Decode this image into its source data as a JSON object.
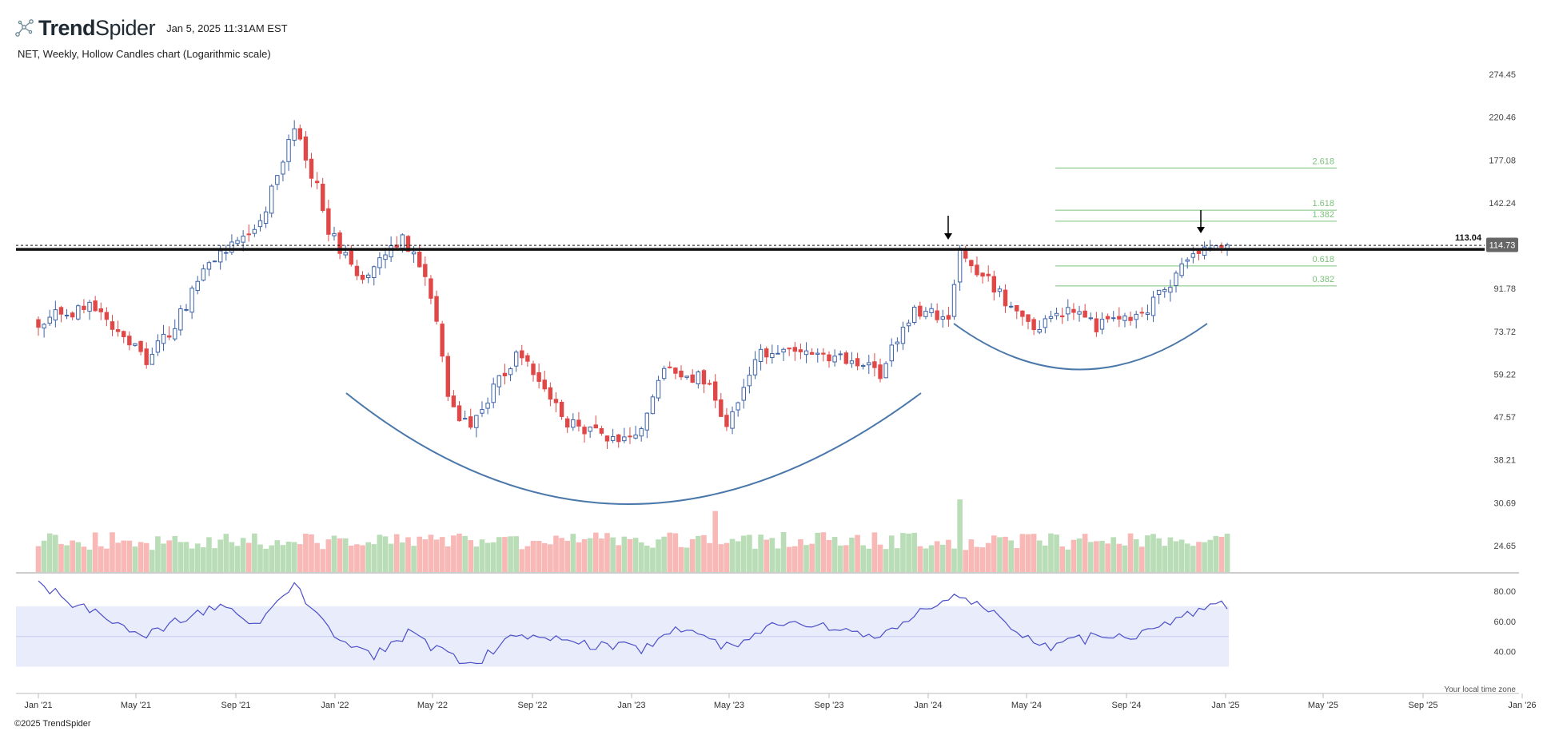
{
  "header": {
    "brand_bold": "Trend",
    "brand_rest": "Spider",
    "timestamp": "Jan 5, 2025 11:31AM EST",
    "subtitle": "NET, Weekly, Hollow Candles chart (Logarithmic scale)"
  },
  "footer": {
    "copyright": "©2025 TrendSpider"
  },
  "colors": {
    "up": "#3d63a8",
    "down": "#e04848",
    "vol_up": "#b9ddb6",
    "vol_down": "#f7b8b6",
    "fib": "#7cc27c",
    "arc": "#4a78aa",
    "rsi_line": "#4b4fc8",
    "rsi_band": "#e9ecfb",
    "resistance": "#111111",
    "price_badge": "#666666"
  },
  "chart_data": {
    "type": "candlestick",
    "symbol": "NET",
    "interval": "Weekly",
    "scale": "log",
    "xlabel": "Your local time zone",
    "x_ticks": [
      "Jan '21",
      "May '21",
      "Sep '21",
      "Jan '22",
      "May '22",
      "Sep '22",
      "Jan '23",
      "May '23",
      "Sep '23",
      "Jan '24",
      "May '24",
      "Sep '24",
      "Jan '25",
      "May '25",
      "Sep '25",
      "Jan '26"
    ],
    "price_ticks": [
      274.45,
      220.46,
      177.08,
      142.24,
      91.78,
      73.72,
      59.22,
      47.57,
      38.21,
      30.69,
      24.65
    ],
    "last_price": "114.73",
    "resistance": {
      "value": 113.04,
      "label": "113.04"
    },
    "fib_levels": [
      {
        "label": "2.618",
        "value": 170.0
      },
      {
        "label": "1.618",
        "value": 137.0
      },
      {
        "label": "1.382",
        "value": 129.5
      },
      {
        "label": "0.618",
        "value": 103.0
      },
      {
        "label": "0.382",
        "value": 93.0
      }
    ],
    "close_anchors": [
      {
        "date": "2021-01-01",
        "close": 78
      },
      {
        "date": "2021-03-05",
        "close": 84
      },
      {
        "date": "2021-05-14",
        "close": 64
      },
      {
        "date": "2021-06-18",
        "close": 76
      },
      {
        "date": "2021-08-06",
        "close": 108
      },
      {
        "date": "2021-09-24",
        "close": 122
      },
      {
        "date": "2021-10-15",
        "close": 150
      },
      {
        "date": "2021-11-12",
        "close": 205
      },
      {
        "date": "2021-11-26",
        "close": 180
      },
      {
        "date": "2021-12-24",
        "close": 125
      },
      {
        "date": "2022-01-28",
        "close": 95
      },
      {
        "date": "2022-03-25",
        "close": 120
      },
      {
        "date": "2022-04-22",
        "close": 100
      },
      {
        "date": "2022-05-20",
        "close": 52
      },
      {
        "date": "2022-06-17",
        "close": 44
      },
      {
        "date": "2022-07-29",
        "close": 60
      },
      {
        "date": "2022-08-12",
        "close": 66
      },
      {
        "date": "2022-10-14",
        "close": 46
      },
      {
        "date": "2022-12-16",
        "close": 42
      },
      {
        "date": "2023-01-13",
        "close": 45
      },
      {
        "date": "2023-02-10",
        "close": 60
      },
      {
        "date": "2023-03-31",
        "close": 58
      },
      {
        "date": "2023-04-28",
        "close": 45
      },
      {
        "date": "2023-06-02",
        "close": 65
      },
      {
        "date": "2023-07-28",
        "close": 66
      },
      {
        "date": "2023-09-29",
        "close": 63
      },
      {
        "date": "2023-11-03",
        "close": 60
      },
      {
        "date": "2023-12-15",
        "close": 82
      },
      {
        "date": "2024-01-26",
        "close": 80
      },
      {
        "date": "2024-02-09",
        "close": 112
      },
      {
        "date": "2024-03-08",
        "close": 98
      },
      {
        "date": "2024-05-10",
        "close": 73
      },
      {
        "date": "2024-06-14",
        "close": 82
      },
      {
        "date": "2024-07-26",
        "close": 76
      },
      {
        "date": "2024-09-27",
        "close": 82
      },
      {
        "date": "2024-11-08",
        "close": 102
      },
      {
        "date": "2024-12-06",
        "close": 115
      },
      {
        "date": "2025-01-03",
        "close": 114.73
      }
    ],
    "rsi_ticks": [
      80.0,
      60.0,
      40.0
    ],
    "rsi_band": [
      30,
      70
    ],
    "rsi_anchors": [
      {
        "date": "2021-01-01",
        "value": 85
      },
      {
        "date": "2021-02-19",
        "value": 70
      },
      {
        "date": "2021-05-14",
        "value": 52
      },
      {
        "date": "2021-08-06",
        "value": 70
      },
      {
        "date": "2021-10-01",
        "value": 58
      },
      {
        "date": "2021-11-12",
        "value": 85
      },
      {
        "date": "2021-12-31",
        "value": 50
      },
      {
        "date": "2022-02-18",
        "value": 38
      },
      {
        "date": "2022-04-01",
        "value": 52
      },
      {
        "date": "2022-06-17",
        "value": 30
      },
      {
        "date": "2022-08-12",
        "value": 51
      },
      {
        "date": "2022-11-04",
        "value": 45
      },
      {
        "date": "2023-01-13",
        "value": 42
      },
      {
        "date": "2023-03-03",
        "value": 55
      },
      {
        "date": "2023-05-05",
        "value": 42
      },
      {
        "date": "2023-06-16",
        "value": 58
      },
      {
        "date": "2023-09-15",
        "value": 55
      },
      {
        "date": "2023-11-03",
        "value": 48
      },
      {
        "date": "2023-12-29",
        "value": 70
      },
      {
        "date": "2024-02-09",
        "value": 76
      },
      {
        "date": "2024-03-29",
        "value": 63
      },
      {
        "date": "2024-05-17",
        "value": 42
      },
      {
        "date": "2024-07-26",
        "value": 50
      },
      {
        "date": "2024-09-27",
        "value": 52
      },
      {
        "date": "2024-11-08",
        "value": 63
      },
      {
        "date": "2024-12-13",
        "value": 71
      },
      {
        "date": "2025-01-03",
        "value": 70
      }
    ],
    "grid": false,
    "legend": "none"
  }
}
